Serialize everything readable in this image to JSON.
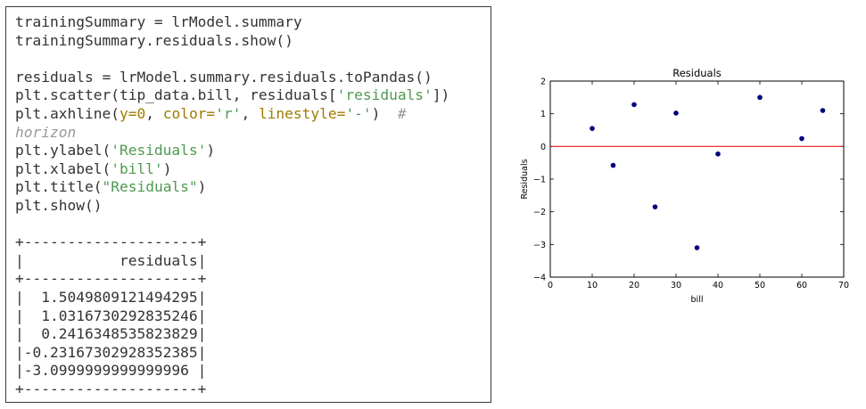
{
  "code": {
    "lines": [
      [
        {
          "t": "trainingSummary = lrModel.summary",
          "c": ""
        }
      ],
      [
        {
          "t": "trainingSummary.residuals.show()",
          "c": ""
        }
      ],
      [
        {
          "t": "",
          "c": ""
        }
      ],
      [
        {
          "t": "residuals = lrModel.summary.residuals.toPandas()",
          "c": ""
        }
      ],
      [
        {
          "t": "plt.scatter(tip_data.bill, residuals[",
          "c": ""
        },
        {
          "t": "'residuals'",
          "c": "str"
        },
        {
          "t": "])",
          "c": ""
        }
      ],
      [
        {
          "t": "plt.axhline(",
          "c": ""
        },
        {
          "t": "y=",
          "c": "kw"
        },
        {
          "t": "0",
          "c": "num"
        },
        {
          "t": ", ",
          "c": ""
        },
        {
          "t": "color=",
          "c": "kw"
        },
        {
          "t": "'r'",
          "c": "str"
        },
        {
          "t": ", ",
          "c": ""
        },
        {
          "t": "linestyle=",
          "c": "kw"
        },
        {
          "t": "'-'",
          "c": "str"
        },
        {
          "t": ")  ",
          "c": ""
        },
        {
          "t": "#",
          "c": "com"
        }
      ],
      [
        {
          "t": "horizon",
          "c": "com"
        }
      ],
      [
        {
          "t": "plt.ylabel(",
          "c": ""
        },
        {
          "t": "'Residuals'",
          "c": "str"
        },
        {
          "t": ")",
          "c": ""
        }
      ],
      [
        {
          "t": "plt.xlabel(",
          "c": ""
        },
        {
          "t": "'bill'",
          "c": "str"
        },
        {
          "t": ")",
          "c": ""
        }
      ],
      [
        {
          "t": "plt.title(",
          "c": ""
        },
        {
          "t": "\"Residuals\"",
          "c": "str"
        },
        {
          "t": ")",
          "c": ""
        }
      ],
      [
        {
          "t": "plt.show()",
          "c": ""
        }
      ],
      [
        {
          "t": "",
          "c": ""
        }
      ],
      [
        {
          "t": "+--------------------+",
          "c": ""
        }
      ],
      [
        {
          "t": "|           residuals|",
          "c": ""
        }
      ],
      [
        {
          "t": "+--------------------+",
          "c": ""
        }
      ],
      [
        {
          "t": "|  1.5049809121494295|",
          "c": ""
        }
      ],
      [
        {
          "t": "|  1.0316730292835246|",
          "c": ""
        }
      ],
      [
        {
          "t": "|  0.2416348535823829|",
          "c": ""
        }
      ],
      [
        {
          "t": "|-0.23167302928352385|",
          "c": ""
        }
      ],
      [
        {
          "t": "|-3.0999999999999996 |",
          "c": ""
        }
      ],
      [
        {
          "t": "+--------------------+",
          "c": ""
        }
      ]
    ]
  },
  "colors": {
    "string": "#4e9a50",
    "keyword": "#a07a00",
    "comment": "#999999",
    "marker": "#00007a",
    "hline": "#e8191b"
  },
  "chart_data": {
    "type": "scatter",
    "title": "Residuals",
    "xlabel": "bill",
    "ylabel": "Residuals",
    "xlim": [
      0,
      70
    ],
    "ylim": [
      -4,
      2
    ],
    "xticks": [
      0,
      10,
      20,
      30,
      40,
      50,
      60,
      70
    ],
    "yticks": [
      -4,
      -3,
      -2,
      -1,
      0,
      1,
      2
    ],
    "grid": false,
    "x": [
      10,
      15,
      20,
      25,
      30,
      35,
      40,
      50,
      60,
      65
    ],
    "y": [
      0.55,
      -0.58,
      1.28,
      -1.85,
      1.02,
      -3.1,
      -0.23,
      1.5,
      0.24,
      1.1
    ],
    "hline": 0
  }
}
